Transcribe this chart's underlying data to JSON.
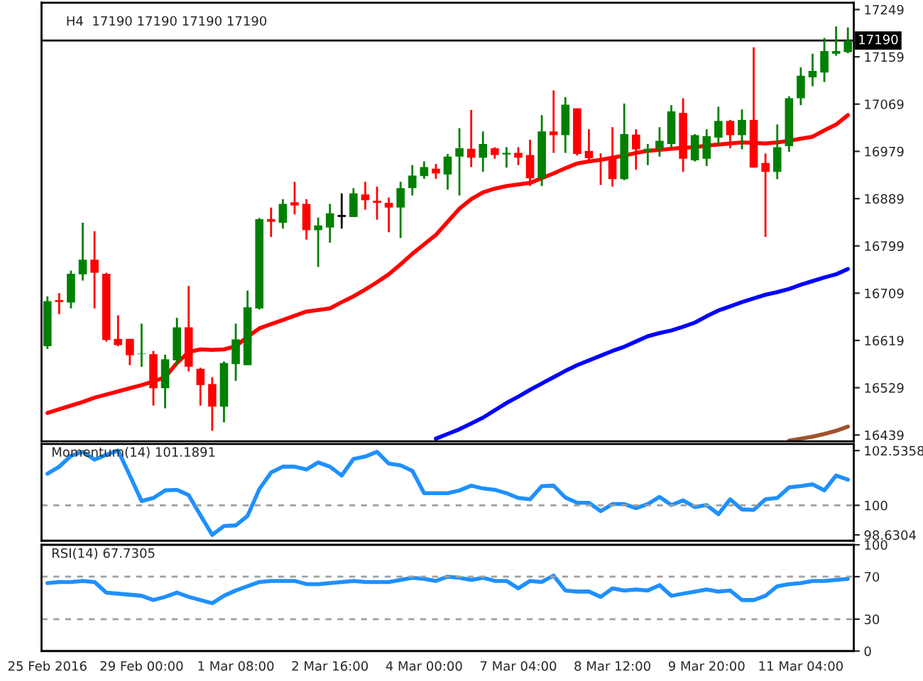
{
  "chart_data": [
    {
      "type": "candlestick",
      "title": "H4  17190 17190 17190 17190",
      "tick_labels": "y",
      "categories": [
        null,
        null,
        null,
        null,
        null,
        null,
        null,
        null,
        null,
        null,
        null,
        null,
        null,
        null,
        null,
        null,
        null,
        null,
        null,
        null,
        null,
        null,
        null,
        null,
        null,
        null,
        null,
        null,
        null,
        null,
        null,
        null,
        null,
        null,
        null,
        null,
        null,
        null,
        null,
        null,
        null,
        null,
        null,
        null,
        null,
        null,
        null,
        null,
        null,
        null,
        null,
        null,
        null,
        null,
        null,
        null,
        null,
        null,
        null,
        null,
        null,
        null,
        null,
        null,
        null,
        null,
        null,
        null,
        null
      ],
      "ohlc": [
        [
          16608,
          16703,
          16603,
          16694
        ],
        [
          16696,
          16709,
          16669,
          16692
        ],
        [
          16691,
          16752,
          16680,
          16746
        ],
        [
          16745,
          16843,
          16733,
          16773
        ],
        [
          16773,
          16827,
          16680,
          16748
        ],
        [
          16746,
          16748,
          16617,
          16620
        ],
        [
          16622,
          16667,
          16608,
          16610
        ],
        [
          16622,
          16622,
          16572,
          16591
        ],
        [
          16593,
          16651,
          16569,
          16594
        ],
        [
          16593,
          16599,
          16495,
          16528
        ],
        [
          16528,
          16592,
          16490,
          16583
        ],
        [
          16581,
          16662,
          16572,
          16644
        ],
        [
          16644,
          16723,
          16560,
          16569
        ],
        [
          16565,
          16567,
          16495,
          16534
        ],
        [
          16536,
          16549,
          16447,
          16493
        ],
        [
          16493,
          16579,
          16463,
          16576
        ],
        [
          16574,
          16651,
          16542,
          16621
        ],
        [
          16572,
          16714,
          16572,
          16682
        ],
        [
          16680,
          16852,
          16678,
          16850
        ],
        [
          16850,
          16872,
          16816,
          16845
        ],
        [
          16843,
          16888,
          16832,
          16879
        ],
        [
          16882,
          16921,
          16859,
          16876
        ],
        [
          16879,
          16888,
          16811,
          16829
        ],
        [
          16829,
          16853,
          16759,
          16838
        ],
        [
          16834,
          16879,
          16805,
          16861
        ],
        [
          16856,
          16899,
          16832,
          16856
        ],
        [
          16854,
          16909,
          16854,
          16899
        ],
        [
          16897,
          16921,
          16868,
          16886
        ],
        [
          16885,
          16912,
          16849,
          16881
        ],
        [
          16881,
          16891,
          16825,
          16872
        ],
        [
          16872,
          16921,
          16814,
          16909
        ],
        [
          16909,
          16953,
          16895,
          16933
        ],
        [
          16932,
          16960,
          16927,
          16949
        ],
        [
          16946,
          16955,
          16927,
          16937
        ],
        [
          16935,
          16974,
          16906,
          16969
        ],
        [
          16969,
          17023,
          16895,
          16985
        ],
        [
          16984,
          17058,
          16949,
          16967
        ],
        [
          16967,
          17017,
          16940,
          16993
        ],
        [
          16985,
          16987,
          16965,
          16972
        ],
        [
          16973,
          16987,
          16948,
          16976
        ],
        [
          16976,
          16987,
          16953,
          16967
        ],
        [
          16972,
          17001,
          16913,
          16928
        ],
        [
          16928,
          17048,
          16913,
          17017
        ],
        [
          17017,
          17095,
          16976,
          17010
        ],
        [
          17010,
          17082,
          16976,
          17068
        ],
        [
          17061,
          17061,
          16971,
          16974
        ],
        [
          16980,
          17021,
          16960,
          16966
        ],
        [
          16966,
          16975,
          16915,
          16964
        ],
        [
          16966,
          17025,
          16912,
          16926
        ],
        [
          16926,
          17070,
          16924,
          17012
        ],
        [
          17011,
          17021,
          16944,
          16983
        ],
        [
          16980,
          16993,
          16953,
          16984
        ],
        [
          16984,
          17025,
          16969,
          16999
        ],
        [
          16993,
          17067,
          16987,
          17055
        ],
        [
          17052,
          17080,
          16940,
          16965
        ],
        [
          16962,
          17012,
          16960,
          17010
        ],
        [
          16965,
          17021,
          16951,
          17008
        ],
        [
          17005,
          17064,
          16992,
          17037
        ],
        [
          17037,
          17039,
          16985,
          17010
        ],
        [
          17010,
          17059,
          16983,
          17039
        ],
        [
          17039,
          17177,
          16948,
          16948
        ],
        [
          16957,
          16975,
          16816,
          16940
        ],
        [
          16940,
          17030,
          16926,
          16987
        ],
        [
          16989,
          17084,
          16978,
          17080
        ],
        [
          17080,
          17139,
          17067,
          17123
        ],
        [
          17120,
          17165,
          17103,
          17132
        ],
        [
          17129,
          17195,
          17111,
          17170
        ],
        [
          17165,
          17217,
          17161,
          17170
        ],
        [
          17168,
          17215,
          17166,
          17190
        ]
      ],
      "colors": [
        "#008000",
        "#ff0000",
        "#008000",
        "#008000",
        "#ff0000",
        "#ff0000",
        "#ff0000",
        "#ff0000",
        "#008000",
        "#ff0000",
        "#008000",
        "#008000",
        "#ff0000",
        "#ff0000",
        "#ff0000",
        "#008000",
        "#008000",
        "#008000",
        "#008000",
        "#ff0000",
        "#008000",
        "#ff0000",
        "#ff0000",
        "#008000",
        "#008000",
        "#000000",
        "#008000",
        "#ff0000",
        "#ff0000",
        "#ff0000",
        "#008000",
        "#008000",
        "#008000",
        "#ff0000",
        "#008000",
        "#008000",
        "#ff0000",
        "#008000",
        "#ff0000",
        "#008000",
        "#ff0000",
        "#ff0000",
        "#008000",
        "#ff0000",
        "#008000",
        "#ff0000",
        "#ff0000",
        "#ff0000",
        "#ff0000",
        "#008000",
        "#ff0000",
        "#008000",
        "#008000",
        "#008000",
        "#ff0000",
        "#008000",
        "#008000",
        "#008000",
        "#ff0000",
        "#008000",
        "#ff0000",
        "#ff0000",
        "#008000",
        "#008000",
        "#008000",
        "#008000",
        "#008000",
        "#008000",
        "#008000"
      ],
      "series": [
        {
          "type": "line",
          "color": "#ff0000",
          "values": [
            16481,
            16488,
            16495,
            16502,
            16510,
            16516,
            16522,
            16528,
            16534,
            16541,
            16549,
            16576,
            16597,
            16602,
            16601,
            16602,
            16608,
            16626,
            16642,
            16650,
            16658,
            16666,
            16674,
            16677,
            16680,
            16692,
            16703,
            16716,
            16730,
            16745,
            16764,
            16784,
            16802,
            16820,
            16845,
            16870,
            16888,
            16901,
            16908,
            16913,
            16916,
            16919,
            16928,
            16937,
            16947,
            16956,
            16960,
            16963,
            16967,
            16971,
            16976,
            16980,
            16982,
            16984,
            16986,
            16987,
            16990,
            16992,
            16994,
            16996,
            16995,
            16994,
            16996,
            16999,
            17003,
            17007,
            17019,
            17030,
            17048
          ]
        },
        {
          "type": "line",
          "color": "#0000ff",
          "values": [
            null,
            null,
            null,
            null,
            null,
            null,
            null,
            null,
            null,
            null,
            null,
            null,
            null,
            null,
            null,
            null,
            null,
            null,
            null,
            null,
            null,
            null,
            null,
            null,
            null,
            null,
            null,
            null,
            null,
            null,
            null,
            null,
            null,
            16432,
            16441,
            16450,
            16461,
            16472,
            16486,
            16500,
            16512,
            16525,
            16537,
            16549,
            16561,
            16572,
            16581,
            16590,
            16599,
            16607,
            16617,
            16627,
            16633,
            16638,
            16645,
            16653,
            16665,
            16676,
            16684,
            16692,
            16699,
            16706,
            16711,
            16717,
            16725,
            16732,
            16739,
            16745,
            16755
          ]
        },
        {
          "type": "line",
          "color": "#a0522d",
          "values": [
            null,
            null,
            null,
            null,
            null,
            null,
            null,
            null,
            null,
            null,
            null,
            null,
            null,
            null,
            null,
            null,
            null,
            null,
            null,
            null,
            null,
            null,
            null,
            null,
            null,
            null,
            null,
            null,
            null,
            null,
            null,
            null,
            null,
            null,
            null,
            null,
            null,
            null,
            null,
            null,
            null,
            null,
            null,
            null,
            null,
            null,
            null,
            null,
            null,
            null,
            null,
            null,
            null,
            null,
            null,
            null,
            null,
            null,
            null,
            null,
            null,
            null,
            null,
            16428,
            16432,
            16436,
            16441,
            16447,
            16455
          ]
        }
      ],
      "ylim": [
        16427,
        17262
      ],
      "yticks": [
        16439,
        16529,
        16619,
        16709,
        16799,
        16889,
        16979,
        17069,
        17159,
        17249
      ],
      "ref_lines": [
        {
          "axis": "y",
          "value": 17190,
          "label": "17190",
          "color": "#000000"
        }
      ]
    },
    {
      "type": "line",
      "title": "Momentum(14) 101.1891",
      "tick_labels": "y",
      "categories": [
        null,
        null,
        null,
        null,
        null,
        null,
        null,
        null,
        null,
        null,
        null,
        null,
        null,
        null,
        null,
        null,
        null,
        null,
        null,
        null,
        null,
        null,
        null,
        null,
        null,
        null,
        null,
        null,
        null,
        null,
        null,
        null,
        null,
        null,
        null,
        null,
        null,
        null,
        null,
        null,
        null,
        null,
        null,
        null,
        null,
        null,
        null,
        null,
        null,
        null,
        null,
        null,
        null,
        null,
        null,
        null,
        null,
        null,
        null,
        null,
        null,
        null,
        null,
        null,
        null,
        null,
        null,
        null,
        null
      ],
      "series": [
        {
          "color": "#1e90ff",
          "values": [
            101.46,
            101.79,
            102.29,
            102.48,
            102.12,
            102.34,
            102.54,
            101.38,
            100.2,
            100.34,
            100.69,
            100.72,
            100.47,
            99.54,
            98.63,
            99.04,
            99.07,
            99.51,
            100.75,
            101.52,
            101.79,
            101.79,
            101.66,
            101.99,
            101.79,
            101.38,
            102.15,
            102.26,
            102.48,
            101.93,
            101.85,
            101.6,
            100.56,
            100.56,
            100.56,
            100.69,
            100.91,
            100.78,
            100.72,
            100.56,
            100.34,
            100.28,
            100.89,
            100.91,
            100.36,
            100.12,
            100.12,
            99.73,
            100.06,
            100.06,
            99.87,
            100.06,
            100.39,
            100.01,
            100.23,
            99.92,
            100.01,
            99.59,
            100.28,
            99.81,
            99.79,
            100.28,
            100.34,
            100.83,
            100.89,
            100.97,
            100.69,
            101.38,
            101.19
          ]
        }
      ],
      "ylim": [
        98.36,
        102.84
      ],
      "yticks": [
        98.6304,
        100,
        102.5358
      ],
      "ref_lines": [
        {
          "axis": "y",
          "value": 100,
          "color": "#a0a0a0",
          "line_style": "dashed"
        }
      ]
    },
    {
      "type": "line",
      "title": "RSI(14) 67.7305",
      "categories": [
        "25 Feb 2016",
        null,
        null,
        null,
        null,
        null,
        null,
        null,
        "29 Feb 00:00",
        null,
        null,
        null,
        null,
        null,
        null,
        null,
        "1 Mar 08:00",
        null,
        null,
        null,
        null,
        null,
        null,
        null,
        "2 Mar 16:00",
        null,
        null,
        null,
        null,
        null,
        null,
        null,
        "4 Mar 00:00",
        null,
        null,
        null,
        null,
        null,
        null,
        null,
        "7 Mar 04:00",
        null,
        null,
        null,
        null,
        null,
        null,
        null,
        "8 Mar 12:00",
        null,
        null,
        null,
        null,
        null,
        null,
        null,
        "9 Mar 20:00",
        null,
        null,
        null,
        null,
        null,
        null,
        null,
        "11 Mar 04:00",
        null,
        null,
        null,
        null
      ],
      "series": [
        {
          "color": "#1e90ff",
          "values": [
            64,
            65,
            65,
            66,
            65,
            55,
            54,
            53,
            52,
            48,
            51,
            55,
            51,
            48,
            45,
            52,
            57,
            61,
            65,
            66,
            66,
            66,
            63,
            63,
            64,
            65,
            66,
            65,
            65,
            65,
            67,
            69,
            68,
            66,
            70,
            69,
            67,
            69,
            66,
            66,
            59,
            66,
            65,
            71,
            57,
            56,
            56,
            51,
            59,
            57,
            58,
            57,
            62,
            52,
            54,
            56,
            58,
            56,
            57,
            48,
            48,
            52,
            61,
            63,
            64,
            66,
            66,
            67,
            68
          ]
        }
      ],
      "ylim": [
        0,
        100
      ],
      "yticks": [
        0,
        30,
        70,
        100
      ],
      "ref_lines": [
        {
          "axis": "y",
          "value": 70,
          "color": "#a0a0a0",
          "line_style": "dashed"
        },
        {
          "axis": "y",
          "value": 30,
          "color": "#a0a0a0",
          "line_style": "dashed"
        }
      ]
    }
  ]
}
